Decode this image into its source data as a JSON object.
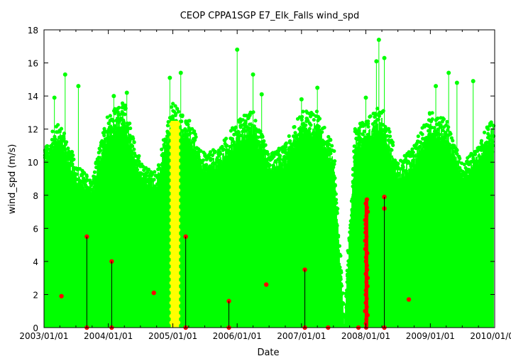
{
  "chart_data": {
    "type": "scatter",
    "title": "CEOP CPPA1SGP E7_Elk_Falls  wind_spd",
    "xlabel": "Date",
    "ylabel": "wind_spd (m/s)",
    "xlim": [
      "2003/01/01",
      "2010/01/01"
    ],
    "ylim": [
      0,
      18
    ],
    "x_tick_labels": [
      "2003/01/01",
      "2004/01/01",
      "2005/01/01",
      "2006/01/01",
      "2007/01/01",
      "2008/01/01",
      "2009/01/01",
      "2010/01/01"
    ],
    "y_tick_labels": [
      "0",
      "2",
      "4",
      "6",
      "8",
      "10",
      "12",
      "14",
      "16",
      "18"
    ],
    "grid": false,
    "colors": {
      "normal": "#00ff00",
      "flagged_yellow": "#ffff00",
      "flagged_red": "#ff0000",
      "stems": "#000000"
    },
    "green_envelope": [
      {
        "date": "2003/01/01",
        "max": 10.5
      },
      {
        "date": "2003/04/01",
        "max": 12.0
      },
      {
        "date": "2003/07/01",
        "max": 9.5
      },
      {
        "date": "2003/10/01",
        "max": 8.5
      },
      {
        "date": "2004/01/01",
        "max": 12.5
      },
      {
        "date": "2004/04/01",
        "max": 13.0
      },
      {
        "date": "2004/07/01",
        "max": 9.5
      },
      {
        "date": "2004/10/01",
        "max": 9.0
      },
      {
        "date": "2005/01/01",
        "max": 13.0
      },
      {
        "date": "2005/04/01",
        "max": 12.0
      },
      {
        "date": "2005/07/01",
        "max": 10.0
      },
      {
        "date": "2005/10/01",
        "max": 10.5
      },
      {
        "date": "2006/01/01",
        "max": 12.0
      },
      {
        "date": "2006/04/01",
        "max": 12.5
      },
      {
        "date": "2006/07/01",
        "max": 10.0
      },
      {
        "date": "2006/10/01",
        "max": 10.5
      },
      {
        "date": "2007/01/01",
        "max": 12.5
      },
      {
        "date": "2007/04/01",
        "max": 12.5
      },
      {
        "date": "2007/07/01",
        "max": 10.5
      },
      {
        "date": "2007/09/01",
        "max": 0.0
      },
      {
        "date": "2007/11/01",
        "max": 11.5
      },
      {
        "date": "2008/01/01",
        "max": 12.0
      },
      {
        "date": "2008/04/01",
        "max": 13.0
      },
      {
        "date": "2008/07/01",
        "max": 9.5
      },
      {
        "date": "2008/10/01",
        "max": 10.5
      },
      {
        "date": "2009/01/01",
        "max": 12.5
      },
      {
        "date": "2009/04/01",
        "max": 12.0
      },
      {
        "date": "2009/07/01",
        "max": 9.5
      },
      {
        "date": "2009/10/01",
        "max": 10.5
      },
      {
        "date": "2010/01/01",
        "max": 12.5
      }
    ],
    "green_peaks": [
      {
        "date": "2003/05/01",
        "value": 15.3
      },
      {
        "date": "2003/07/15",
        "value": 14.6
      },
      {
        "date": "2003/03/01",
        "value": 13.9
      },
      {
        "date": "2004/02/01",
        "value": 14.0
      },
      {
        "date": "2004/04/15",
        "value": 14.2
      },
      {
        "date": "2004/12/15",
        "value": 15.1
      },
      {
        "date": "2005/02/15",
        "value": 15.4
      },
      {
        "date": "2006/01/01",
        "value": 16.8
      },
      {
        "date": "2006/04/01",
        "value": 15.3
      },
      {
        "date": "2006/05/20",
        "value": 14.1
      },
      {
        "date": "2007/01/01",
        "value": 13.8
      },
      {
        "date": "2007/04/01",
        "value": 14.5
      },
      {
        "date": "2008/01/01",
        "value": 13.9
      },
      {
        "date": "2008/03/01",
        "value": 16.1
      },
      {
        "date": "2008/03/15",
        "value": 17.4
      },
      {
        "date": "2008/04/15",
        "value": 16.3
      },
      {
        "date": "2009/02/01",
        "value": 14.6
      },
      {
        "date": "2009/04/15",
        "value": 15.4
      },
      {
        "date": "2009/06/01",
        "value": 14.8
      },
      {
        "date": "2009/09/01",
        "value": 14.9
      }
    ],
    "yellow_band": {
      "start": "2004/12/20",
      "end": "2005/02/05",
      "max": 12.5
    },
    "red_points": [
      {
        "date": "2003/04/10",
        "value": 1.9
      },
      {
        "date": "2003/09/01",
        "value": 5.5
      },
      {
        "date": "2003/09/01",
        "value": 0.0
      },
      {
        "date": "2004/01/20",
        "value": 4.0
      },
      {
        "date": "2004/01/20",
        "value": 0.0
      },
      {
        "date": "2004/09/15",
        "value": 2.1
      },
      {
        "date": "2005/03/15",
        "value": 5.5
      },
      {
        "date": "2005/03/15",
        "value": 0.0
      },
      {
        "date": "2005/11/15",
        "value": 1.6
      },
      {
        "date": "2005/11/15",
        "value": 0.0
      },
      {
        "date": "2006/06/15",
        "value": 2.6
      },
      {
        "date": "2007/01/20",
        "value": 3.5
      },
      {
        "date": "2007/01/20",
        "value": 0.0
      },
      {
        "date": "2007/06/01",
        "value": 0.0
      },
      {
        "date": "2007/11/20",
        "value": 0.0
      },
      {
        "date": "2008/04/15",
        "value": 7.9
      },
      {
        "date": "2008/04/15",
        "value": 7.2
      },
      {
        "date": "2008/04/15",
        "value": 0.0
      },
      {
        "date": "2008/09/01",
        "value": 1.7
      }
    ],
    "red_stems": [
      {
        "date": "2003/09/01",
        "from": 0,
        "to": 5.5
      },
      {
        "date": "2004/01/20",
        "from": 0,
        "to": 4.0
      },
      {
        "date": "2005/03/15",
        "from": 0,
        "to": 5.5
      },
      {
        "date": "2005/11/15",
        "from": 0,
        "to": 1.6
      },
      {
        "date": "2007/01/20",
        "from": 0,
        "to": 3.5
      },
      {
        "date": "2008/04/15",
        "from": 0,
        "to": 7.9
      }
    ],
    "red_cluster": {
      "start": "2007/12/20",
      "end": "2008/01/20",
      "min": 0,
      "max": 7.8
    }
  }
}
